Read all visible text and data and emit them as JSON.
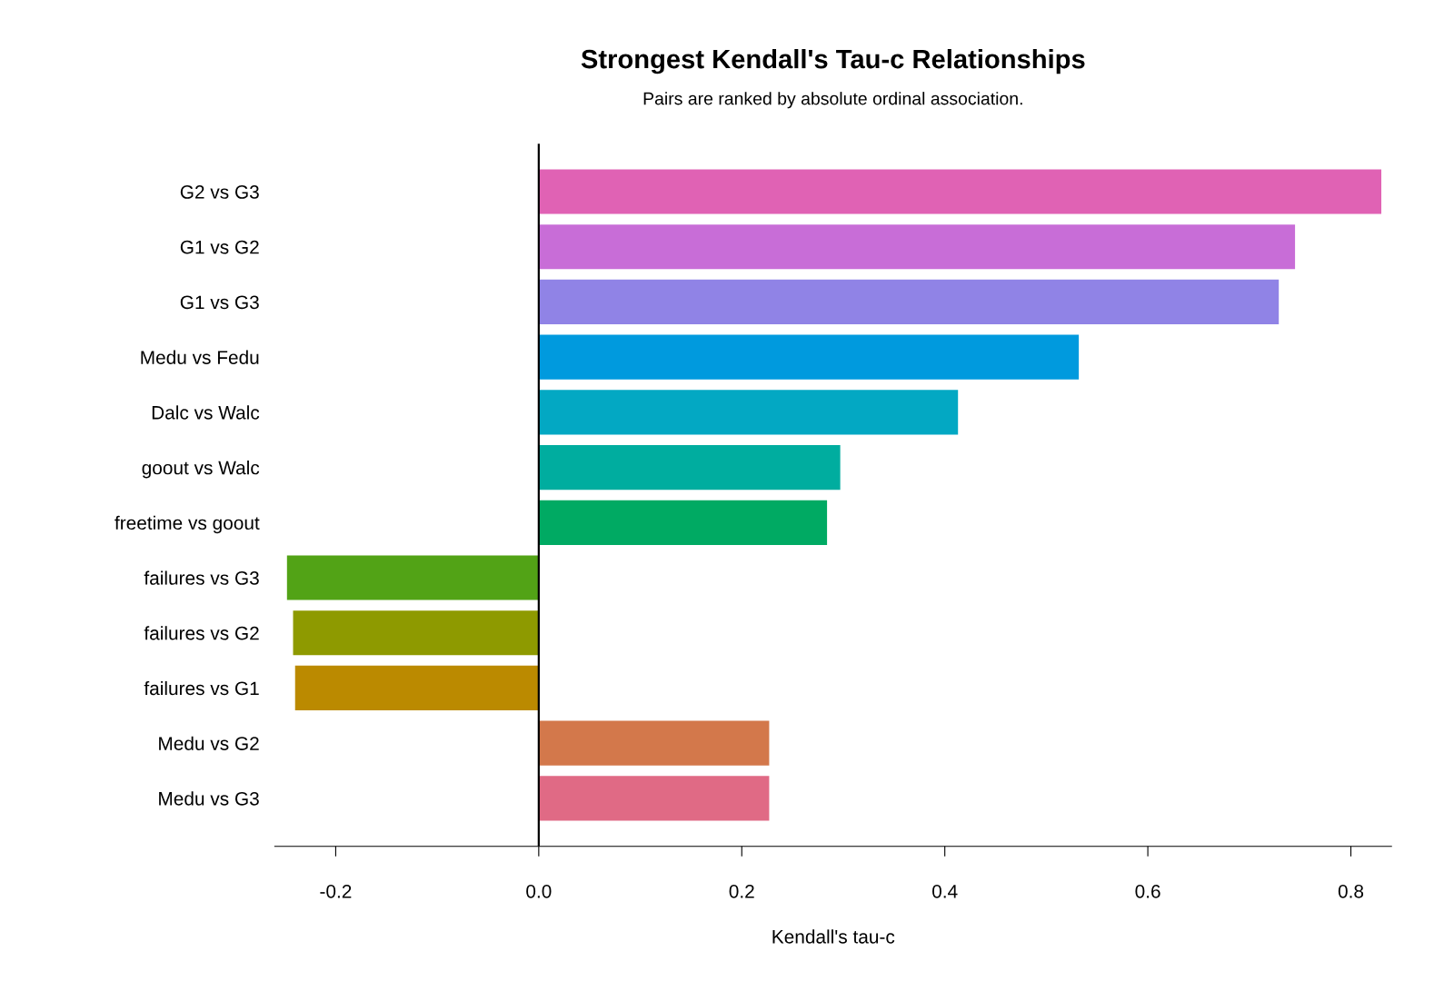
{
  "chart_data": {
    "type": "bar",
    "orientation": "horizontal",
    "title": "Strongest Kendall's Tau-c Relationships",
    "subtitle": "Pairs are ranked by absolute ordinal association.",
    "xlabel": "Kendall's tau-c",
    "categories": [
      "G2 vs G3",
      "G1 vs G2",
      "G1 vs G3",
      "Medu vs Fedu",
      "Dalc vs Walc",
      "goout vs Walc",
      "freetime vs goout",
      "failures vs G3",
      "failures vs G2",
      "failures vs G1",
      "Medu vs G2",
      "Medu vs G3"
    ],
    "values": [
      0.83,
      0.745,
      0.729,
      0.532,
      0.413,
      0.297,
      0.284,
      -0.248,
      -0.242,
      -0.24,
      0.227,
      0.227
    ],
    "colors": [
      "#e062b4",
      "#c86dd7",
      "#9083e6",
      "#009ade",
      "#03a8c3",
      "#00ad9f",
      "#00aa63",
      "#52a316",
      "#8e9a00",
      "#bb8a00",
      "#d3784b",
      "#e06a85"
    ],
    "xlim": [
      -0.26,
      0.84
    ],
    "xticks": [
      {
        "value": -0.2,
        "label": "-0.2"
      },
      {
        "value": 0,
        "label": "0.0"
      },
      {
        "value": 0.2,
        "label": "0.2"
      },
      {
        "value": 0.4,
        "label": "0.4"
      },
      {
        "value": 0.6,
        "label": "0.6"
      },
      {
        "value": 0.8,
        "label": "0.8"
      }
    ],
    "ref_lines": [
      {
        "axis": "x",
        "value": 0,
        "color": "#000000"
      }
    ],
    "grid": false,
    "legend": false
  }
}
